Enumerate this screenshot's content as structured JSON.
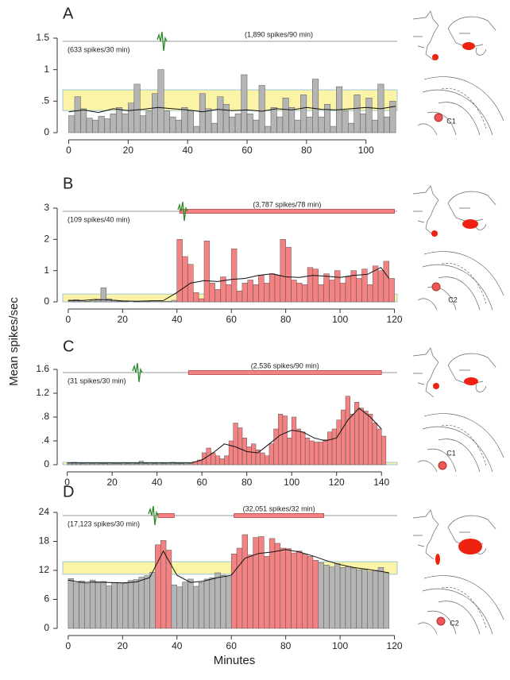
{
  "axis_labels": {
    "y": "Mean spikes/sec",
    "x": "Minutes"
  },
  "chart_data": [
    {
      "type": "histogram",
      "title": "A",
      "xlim": [
        -2,
        110.5
      ],
      "ylim": [
        0,
        1.5
      ],
      "xticks": [
        0,
        20,
        40,
        60,
        80,
        100
      ],
      "yticks": [
        0,
        {
          "value": 0.5,
          "label": ".5"
        },
        1,
        1.5
      ],
      "band": [
        0.35,
        0.68
      ],
      "band_color": "#fbf4a6",
      "stim": [],
      "pre_text": "(633 spikes/30 min)",
      "post_text": "(1,890 spikes/90 min)",
      "diagram_label": "C1",
      "series": [
        {
          "color": "#b5b5b5",
          "bins": [
            0,
            2,
            4,
            6,
            8,
            10,
            12,
            14,
            16,
            18,
            20,
            22,
            24,
            26,
            28,
            30,
            32,
            34,
            36,
            38,
            40,
            42,
            44,
            46,
            48,
            50,
            52,
            54,
            56,
            58,
            60,
            62,
            64,
            66,
            68,
            70,
            72,
            74,
            76,
            78,
            80,
            82,
            84,
            86,
            88,
            90,
            92,
            94,
            96,
            98,
            100,
            102,
            104,
            106,
            108,
            110
          ],
          "values": [
            0.27,
            0.57,
            0.38,
            0.23,
            0.2,
            0.26,
            0.22,
            0.3,
            0.4,
            0.3,
            0.47,
            0.77,
            0.27,
            0.35,
            0.62,
            1.0,
            0.35,
            0.25,
            0.2,
            0.4,
            0.35,
            0.1,
            0.62,
            0.38,
            0.15,
            0.57,
            0.45,
            0.25,
            0.3,
            0.92,
            0.3,
            0.2,
            0.75,
            0.1,
            0.4,
            0.25,
            0.55,
            0.4,
            0.2,
            0.6,
            0.25,
            0.85,
            0.25,
            0.45,
            0.1,
            0.73,
            0.35,
            0.15,
            0.6,
            0.3,
            0.55,
            0.2,
            0.77,
            0.25,
            0.5
          ]
        }
      ],
      "smooth": {
        "color": "#111111",
        "x": [
          0,
          5,
          10,
          15,
          20,
          25,
          30,
          35,
          40,
          45,
          50,
          55,
          60,
          65,
          70,
          75,
          80,
          85,
          90,
          95,
          100,
          105,
          110
        ],
        "values": [
          0.33,
          0.36,
          0.32,
          0.38,
          0.35,
          0.37,
          0.4,
          0.38,
          0.36,
          0.33,
          0.37,
          0.35,
          0.36,
          0.34,
          0.38,
          0.36,
          0.4,
          0.37,
          0.36,
          0.38,
          0.4,
          0.38,
          0.42
        ]
      }
    },
    {
      "type": "histogram",
      "title": "B",
      "xlim": [
        -2,
        121
      ],
      "ylim": [
        0,
        3
      ],
      "xticks": [
        0,
        20,
        40,
        60,
        80,
        100,
        120
      ],
      "yticks": [
        0,
        1,
        2,
        3
      ],
      "band": [
        0,
        0.25
      ],
      "band_color": "#fbf4a6",
      "stim": [
        [
          41,
          120
        ]
      ],
      "pre_text": "(109 spikes/40 min)",
      "post_text": "(3,787 spikes/78 min)",
      "diagram_label": "C2",
      "series": [
        {
          "color": "#b5b5b5",
          "bins": [
            0,
            2,
            4,
            6,
            8,
            10,
            12,
            14,
            16,
            18,
            20,
            22,
            24,
            26,
            28,
            30,
            32,
            34,
            36,
            38,
            40
          ],
          "values": [
            0.03,
            0.07,
            0.05,
            0.02,
            0.04,
            0.06,
            0.45,
            0.1,
            0.05,
            0.02,
            0.01,
            0,
            0.01,
            0.03,
            0.02,
            0.04,
            0.03,
            0.01,
            0.02,
            0.05
          ]
        },
        {
          "color": "#f48282",
          "bins": [
            40,
            42,
            44,
            46,
            48,
            50,
            52,
            54,
            56,
            58,
            60,
            62,
            64,
            66,
            68,
            70,
            72,
            74,
            76,
            78,
            80,
            82,
            84,
            86,
            88,
            90,
            92,
            94,
            96,
            98,
            100,
            102,
            104,
            106,
            108,
            110,
            112,
            114,
            116,
            118,
            120
          ],
          "values": [
            2.0,
            1.45,
            1.2,
            0.3,
            0.1,
            1.95,
            0.6,
            0.4,
            0.8,
            0.55,
            1.7,
            0.35,
            0.6,
            0.7,
            0.55,
            0.85,
            0.6,
            0.9,
            0.85,
            2.0,
            1.75,
            0.7,
            0.6,
            0.55,
            1.1,
            1.05,
            0.55,
            0.9,
            0.7,
            1.0,
            0.6,
            0.8,
            1.0,
            0.75,
            1.05,
            0.55,
            1.15,
            1.0,
            1.3,
            0.75
          ]
        }
      ],
      "smooth": {
        "color": "#111111",
        "x": [
          0,
          5,
          10,
          15,
          20,
          25,
          30,
          35,
          40,
          45,
          50,
          55,
          60,
          65,
          70,
          75,
          80,
          85,
          90,
          95,
          100,
          105,
          110,
          115,
          118
        ],
        "values": [
          0.05,
          0.04,
          0.08,
          0.06,
          0.03,
          0.02,
          0.03,
          0.04,
          0.3,
          0.6,
          0.68,
          0.65,
          0.72,
          0.75,
          0.85,
          0.9,
          0.8,
          0.78,
          0.85,
          0.82,
          0.78,
          0.85,
          0.88,
          1.1,
          0.75
        ]
      }
    },
    {
      "type": "histogram",
      "title": "C",
      "xlim": [
        -2,
        147
      ],
      "ylim": [
        0,
        1.6
      ],
      "xticks": [
        0,
        20,
        40,
        60,
        80,
        100,
        120,
        140
      ],
      "yticks": [
        0,
        {
          "value": 0.4,
          "label": ".4"
        },
        {
          "value": 0.8,
          "label": ".8"
        },
        1.2,
        1.6
      ],
      "band": [
        0,
        0.04
      ],
      "band_color": "#fbf4a6",
      "stim": [
        [
          54,
          140
        ]
      ],
      "pre_text": "(31 spikes/30 min)",
      "post_text": "(2,536 spikes/90 min)",
      "diagram_label": "C1",
      "series": [
        {
          "color": "#b5b5b5",
          "bins": [
            0,
            2,
            4,
            6,
            8,
            10,
            12,
            14,
            16,
            18,
            20,
            22,
            24,
            26,
            28,
            30,
            32,
            34,
            36,
            38,
            40,
            42,
            44,
            46,
            48,
            50,
            52,
            54,
            56
          ],
          "values": [
            0.03,
            0.04,
            0.03,
            0.02,
            0.03,
            0.02,
            0.03,
            0.02,
            0.02,
            0.03,
            0.02,
            0.02,
            0.03,
            0.02,
            0.03,
            0.02,
            0.06,
            0.02,
            0.03,
            0.02,
            0.03,
            0.02,
            0.03,
            0.04,
            0.02,
            0.02,
            0.03,
            0.02
          ]
        },
        {
          "color": "#f48282",
          "bins": [
            56,
            58,
            60,
            62,
            64,
            66,
            68,
            70,
            72,
            74,
            76,
            78,
            80,
            82,
            84,
            86,
            88,
            90,
            92,
            94,
            96,
            98,
            100,
            102,
            104,
            106,
            108,
            110,
            112,
            114,
            116,
            118,
            120,
            122,
            124,
            126,
            128,
            130,
            132,
            134,
            136,
            138,
            140,
            142
          ],
          "values": [
            0.05,
            0.08,
            0.2,
            0.28,
            0.2,
            0.15,
            0.1,
            0.15,
            0.4,
            0.7,
            0.62,
            0.45,
            0.3,
            0.35,
            0.25,
            0.2,
            0.15,
            0.35,
            0.6,
            0.85,
            0.82,
            0.45,
            0.8,
            0.6,
            0.55,
            0.45,
            0.4,
            0.38,
            0.38,
            0.42,
            0.55,
            0.6,
            0.75,
            0.92,
            1.15,
            0.85,
            1.05,
            0.95,
            0.9,
            0.85,
            0.7,
            0.6,
            0.48
          ]
        }
      ],
      "smooth": {
        "color": "#111111",
        "x": [
          0,
          5,
          10,
          15,
          20,
          25,
          30,
          35,
          40,
          45,
          50,
          55,
          60,
          65,
          70,
          75,
          80,
          85,
          90,
          95,
          100,
          105,
          110,
          115,
          120,
          125,
          130,
          135,
          140
        ],
        "values": [
          0.03,
          0.03,
          0.03,
          0.03,
          0.03,
          0.03,
          0.03,
          0.03,
          0.03,
          0.03,
          0.03,
          0.03,
          0.08,
          0.2,
          0.35,
          0.3,
          0.22,
          0.2,
          0.35,
          0.5,
          0.58,
          0.55,
          0.45,
          0.4,
          0.45,
          0.75,
          0.95,
          0.8,
          0.6
        ]
      }
    },
    {
      "type": "histogram",
      "title": "D",
      "xlim": [
        -2,
        121
      ],
      "ylim": [
        0,
        24
      ],
      "xticks": [
        0,
        20,
        40,
        60,
        80,
        100,
        120
      ],
      "yticks": [
        0,
        6,
        12,
        18,
        24
      ],
      "band": [
        11.2,
        13.8
      ],
      "band_color": "#fbf4a6",
      "stim": [
        [
          33,
          39
        ],
        [
          61,
          94
        ]
      ],
      "pre_text": "(17,123 spikes/30 min)",
      "post_text": "(32,051 spikes/32 min)",
      "diagram_label": "C2",
      "series": [
        {
          "color": "#b5b5b5",
          "bins": [
            0,
            2,
            4,
            6,
            8,
            10,
            12,
            14,
            16,
            18,
            20,
            22,
            24,
            26,
            28,
            30,
            32
          ],
          "values": [
            10.3,
            9.4,
            9.8,
            9.3,
            10,
            9.5,
            9.7,
            8.8,
            9.5,
            9.4,
            9.3,
            9.9,
            10.1,
            10.6,
            10.9,
            11.6
          ]
        },
        {
          "color": "#f48282",
          "bins": [
            32,
            34,
            36,
            38
          ],
          "values": [
            17.3,
            18.2,
            16.2
          ]
        },
        {
          "color": "#b5b5b5",
          "bins": [
            38,
            40,
            42,
            44,
            46,
            48,
            50,
            52,
            54,
            56,
            58,
            60
          ],
          "values": [
            9.0,
            8.6,
            9.6,
            10.2,
            8.7,
            9.5,
            10.2,
            10.5,
            11.5,
            11,
            10.7
          ]
        },
        {
          "color": "#f48282",
          "bins": [
            60,
            62,
            64,
            66,
            68,
            70,
            72,
            74,
            76,
            78,
            80,
            82,
            84,
            86,
            88,
            90,
            92
          ],
          "values": [
            15.4,
            16.6,
            19.4,
            15.2,
            18.8,
            19,
            14.9,
            18.6,
            17.6,
            16.6,
            16.5,
            15.6,
            16,
            15.4,
            14.9,
            14.1
          ]
        },
        {
          "color": "#b5b5b5",
          "bins": [
            92,
            94,
            96,
            98,
            100,
            102,
            104,
            106,
            108,
            110,
            112,
            114,
            116,
            118
          ],
          "values": [
            13.6,
            13.1,
            12.7,
            13.4,
            12.6,
            12.8,
            12.5,
            12.1,
            12.3,
            11.7,
            12,
            12.6,
            11.4
          ]
        }
      ],
      "smooth": {
        "color": "#111111",
        "x": [
          0,
          5,
          10,
          15,
          20,
          25,
          30,
          35,
          40,
          45,
          50,
          55,
          60,
          65,
          70,
          75,
          80,
          85,
          90,
          95,
          100,
          105,
          110,
          115,
          118
        ],
        "values": [
          10,
          9.5,
          9.6,
          9.5,
          9.4,
          9.6,
          10.5,
          16,
          11,
          9.5,
          9.8,
          10.5,
          11,
          14.5,
          15.5,
          15.8,
          16.3,
          15.8,
          15,
          14,
          13.2,
          12.6,
          12.2,
          11.8,
          11.5
        ]
      }
    }
  ]
}
